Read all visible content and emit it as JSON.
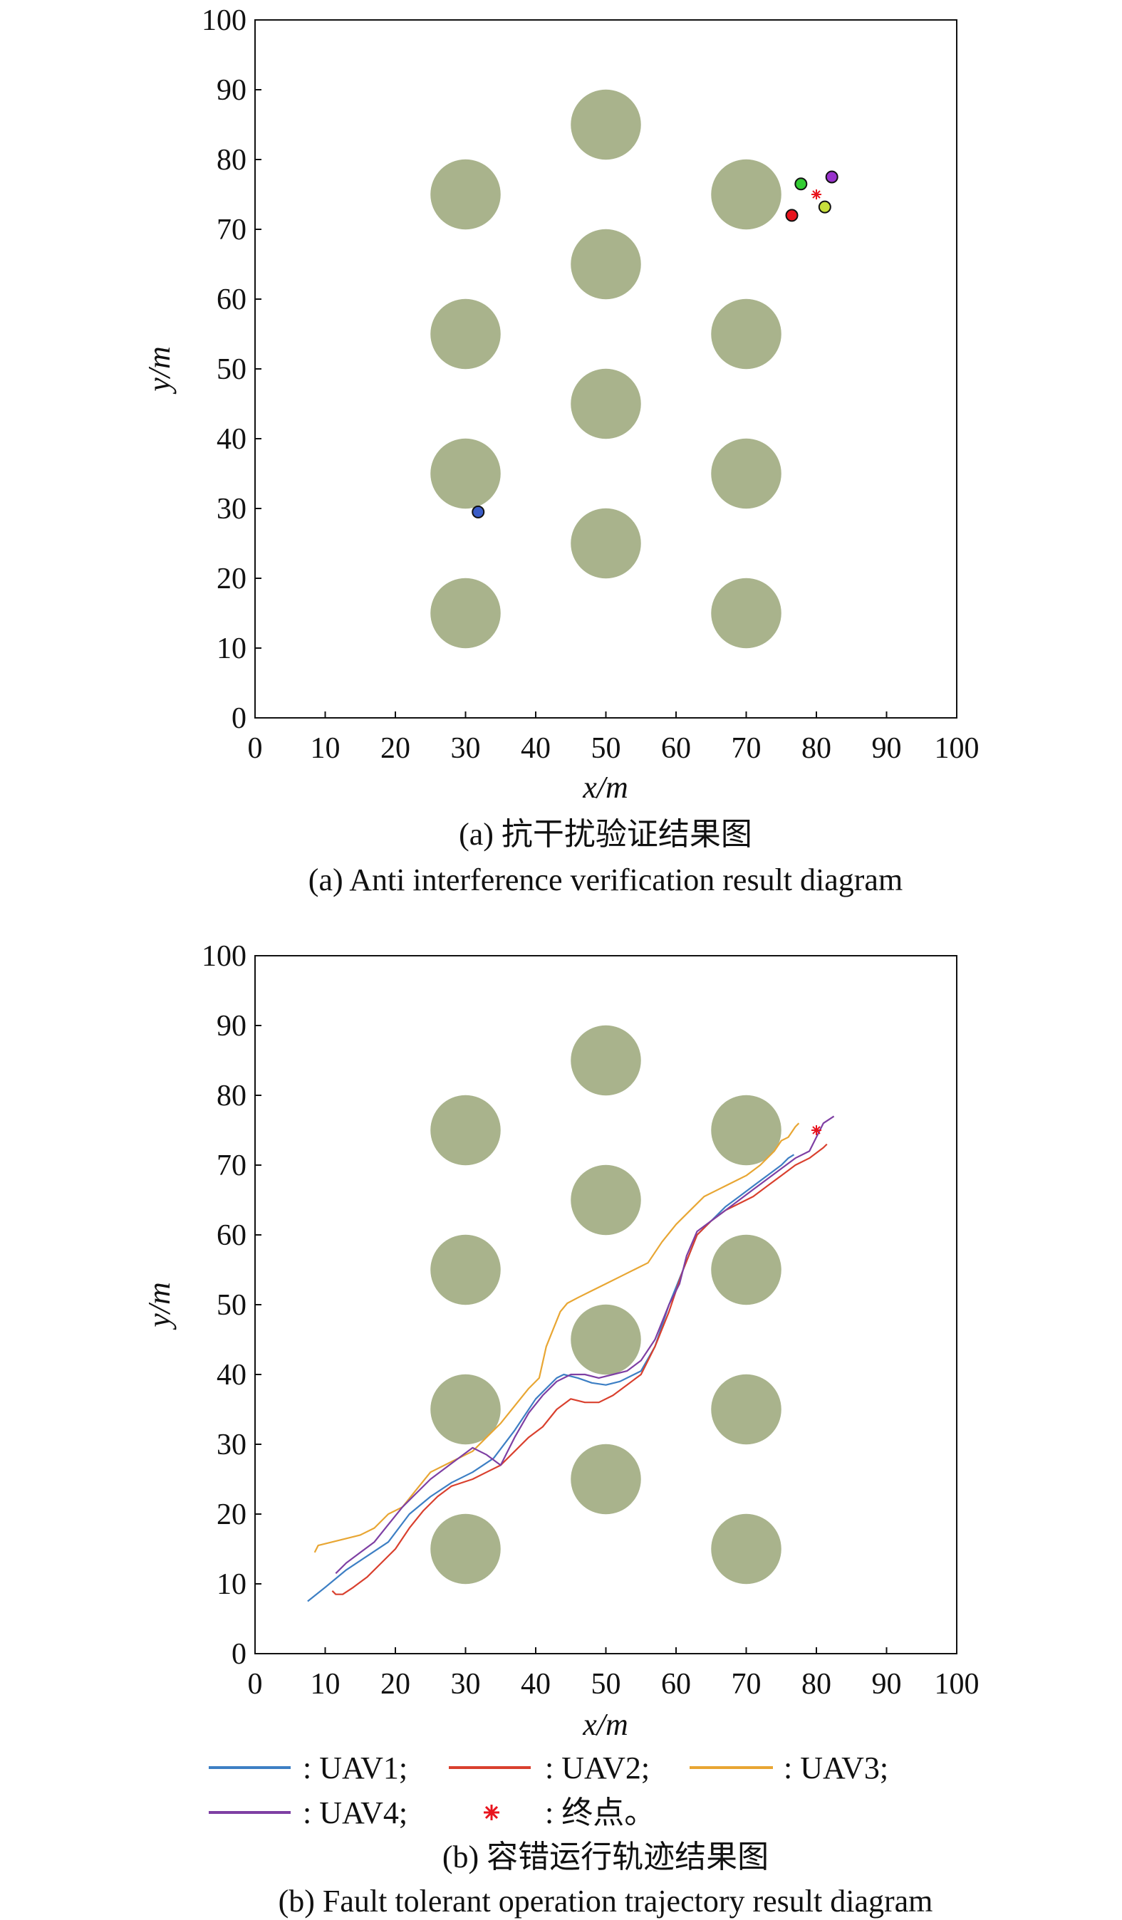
{
  "chart_data": [
    {
      "type": "scatter",
      "panel": "a",
      "xlabel": "x/m",
      "ylabel": "y/m",
      "xlim": [
        0,
        100
      ],
      "ylim": [
        0,
        100
      ],
      "xticks": [
        0,
        10,
        20,
        30,
        40,
        50,
        60,
        70,
        80,
        90,
        100
      ],
      "yticks": [
        0,
        10,
        20,
        30,
        40,
        50,
        60,
        70,
        80,
        90,
        100
      ],
      "grid": false,
      "obstacle_color": "#a9b38c",
      "obstacle_radius": 5,
      "obstacles": [
        {
          "x": 30,
          "y": 15
        },
        {
          "x": 30,
          "y": 35
        },
        {
          "x": 30,
          "y": 55
        },
        {
          "x": 30,
          "y": 75
        },
        {
          "x": 50,
          "y": 25
        },
        {
          "x": 50,
          "y": 45
        },
        {
          "x": 50,
          "y": 65
        },
        {
          "x": 50,
          "y": 85
        },
        {
          "x": 70,
          "y": 15
        },
        {
          "x": 70,
          "y": 35
        },
        {
          "x": 70,
          "y": 55
        },
        {
          "x": 70,
          "y": 75
        }
      ],
      "points": [
        {
          "x": 31.8,
          "y": 29.5,
          "color": "#3a5cc7"
        },
        {
          "x": 77.8,
          "y": 76.5,
          "color": "#33cc33"
        },
        {
          "x": 82.2,
          "y": 77.5,
          "color": "#9933cc"
        },
        {
          "x": 76.5,
          "y": 72.0,
          "color": "#e8141e"
        },
        {
          "x": 81.2,
          "y": 73.2,
          "color": "#c8e03c"
        }
      ],
      "endpoint": {
        "x": 80,
        "y": 75,
        "color": "#e8141e"
      },
      "caption_cn": "(a) 抗干扰验证结果图",
      "caption_en": "(a) Anti interference verification result diagram"
    },
    {
      "type": "line",
      "panel": "b",
      "xlabel": "x/m",
      "ylabel": "y/m",
      "xlim": [
        0,
        100
      ],
      "ylim": [
        0,
        100
      ],
      "xticks": [
        0,
        10,
        20,
        30,
        40,
        50,
        60,
        70,
        80,
        90,
        100
      ],
      "yticks": [
        0,
        10,
        20,
        30,
        40,
        50,
        60,
        70,
        80,
        90,
        100
      ],
      "grid": false,
      "obstacle_color": "#a9b38c",
      "obstacle_radius": 5,
      "obstacles": [
        {
          "x": 30,
          "y": 15
        },
        {
          "x": 30,
          "y": 35
        },
        {
          "x": 30,
          "y": 55
        },
        {
          "x": 30,
          "y": 75
        },
        {
          "x": 50,
          "y": 25
        },
        {
          "x": 50,
          "y": 45
        },
        {
          "x": 50,
          "y": 65
        },
        {
          "x": 50,
          "y": 85
        },
        {
          "x": 70,
          "y": 15
        },
        {
          "x": 70,
          "y": 35
        },
        {
          "x": 70,
          "y": 55
        },
        {
          "x": 70,
          "y": 75
        }
      ],
      "series": [
        {
          "name": "UAV1",
          "color": "#3d7fc4",
          "x": [
            7.5,
            10,
            13,
            16,
            19,
            22,
            25,
            28,
            31,
            34,
            37,
            40,
            43,
            44,
            46,
            48,
            50,
            52,
            55,
            57,
            59,
            61,
            63,
            65,
            67,
            69,
            71,
            73,
            75,
            76,
            76.8
          ],
          "y": [
            7.5,
            9.5,
            12,
            14,
            16,
            20,
            22.5,
            24.5,
            26,
            28,
            32,
            36.5,
            39.5,
            40,
            39.5,
            38.8,
            38.5,
            39,
            40.5,
            44,
            50,
            55,
            60,
            62,
            64,
            65.5,
            67,
            68.5,
            70,
            71,
            71.5
          ]
        },
        {
          "name": "UAV2",
          "color": "#d9402e",
          "x": [
            11,
            11.5,
            12.5,
            14,
            16,
            18,
            20,
            22,
            24,
            26,
            28,
            31,
            33,
            35,
            37,
            39,
            41,
            43,
            45,
            47,
            49,
            51,
            53,
            55,
            57,
            59,
            61,
            63,
            65,
            67,
            69,
            71,
            73,
            75,
            77,
            79,
            81,
            81.5
          ],
          "y": [
            9,
            8.5,
            8.5,
            9.5,
            11,
            13,
            15,
            18,
            20.5,
            22.5,
            24,
            25,
            26,
            27,
            29,
            31,
            32.5,
            35,
            36.5,
            36,
            36,
            37,
            38.5,
            40,
            44,
            49,
            55,
            60,
            62,
            63.5,
            64.5,
            65.5,
            67,
            68.5,
            70,
            71,
            72.5,
            73
          ]
        },
        {
          "name": "UAV3",
          "color": "#e8a633",
          "x": [
            8.5,
            9,
            11,
            13,
            15,
            17,
            19,
            21,
            23,
            25,
            27,
            29,
            31,
            33,
            35,
            37,
            39,
            40.5,
            41.5,
            42.5,
            43.5,
            44.5,
            46,
            48,
            50,
            52,
            54,
            56,
            58,
            60,
            62,
            64,
            66,
            68,
            70,
            72,
            74,
            75,
            76,
            77,
            77.5
          ],
          "y": [
            14.5,
            15.5,
            16,
            16.5,
            17,
            18,
            20,
            21,
            23.5,
            26,
            27,
            28,
            29,
            31,
            33,
            35.5,
            38,
            39.5,
            44,
            46.5,
            49,
            50.2,
            51,
            52,
            53,
            54,
            55,
            56,
            59,
            61.5,
            63.5,
            65.5,
            66.5,
            67.5,
            68.5,
            70,
            72,
            73.5,
            74,
            75.5,
            76
          ]
        },
        {
          "name": "UAV4",
          "color": "#7e3fa3",
          "x": [
            11.5,
            13,
            15,
            17,
            19,
            21,
            23,
            25,
            27,
            29,
            31,
            33,
            35,
            37,
            39,
            41,
            43,
            45,
            47,
            49,
            51,
            53,
            55,
            57,
            59,
            60.5,
            61.5,
            63,
            65,
            67,
            69,
            71,
            73,
            75,
            77,
            79,
            80,
            81,
            82.5
          ],
          "y": [
            11.5,
            13,
            14.5,
            16,
            18.5,
            21,
            23,
            25,
            26.5,
            28,
            29.5,
            28.5,
            27,
            31,
            34.5,
            37,
            39,
            40,
            40,
            39.5,
            40,
            40.5,
            42,
            45,
            50,
            53,
            57,
            60.5,
            62,
            63.5,
            65,
            66.5,
            68,
            69.5,
            71,
            72,
            74,
            76,
            77
          ]
        }
      ],
      "endpoint": {
        "x": 80,
        "y": 75,
        "color": "#e8141e"
      },
      "legend": [
        {
          "label": ": UAV1;",
          "color": "#3d7fc4",
          "kind": "line"
        },
        {
          "label": ": UAV2;",
          "color": "#d9402e",
          "kind": "line"
        },
        {
          "label": ": UAV3;",
          "color": "#e8a633",
          "kind": "line"
        },
        {
          "label": ": UAV4;",
          "color": "#7e3fa3",
          "kind": "line"
        },
        {
          "label": ": 终点。",
          "color": "#e8141e",
          "kind": "star"
        }
      ],
      "caption_cn": "(b) 容错运行轨迹结果图",
      "caption_en": "(b) Fault tolerant operation trajectory result diagram"
    }
  ]
}
